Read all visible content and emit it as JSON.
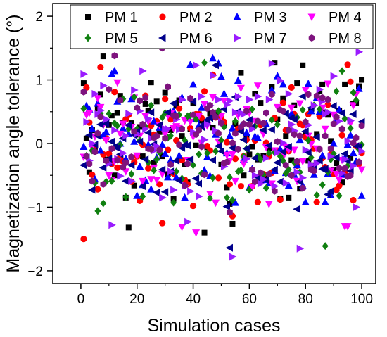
{
  "chart_data": {
    "type": "scatter",
    "xlabel": "Simulation cases",
    "ylabel": "Magnetization angle tolerance (°)",
    "xlim": [
      -10,
      105
    ],
    "ylim": [
      -2.2,
      2.2
    ],
    "xticks": [
      0,
      20,
      40,
      60,
      80,
      100
    ],
    "yticks": [
      -2,
      -1,
      0,
      1,
      2
    ],
    "legend_position": "top",
    "legend_columns": 4,
    "x": [
      1,
      2,
      3,
      4,
      5,
      6,
      7,
      8,
      9,
      10,
      11,
      12,
      13,
      14,
      15,
      16,
      17,
      18,
      19,
      20,
      21,
      22,
      23,
      24,
      25,
      26,
      27,
      28,
      29,
      30,
      31,
      32,
      33,
      34,
      35,
      36,
      37,
      38,
      39,
      40,
      41,
      42,
      43,
      44,
      45,
      46,
      47,
      48,
      49,
      50,
      51,
      52,
      53,
      54,
      55,
      56,
      57,
      58,
      59,
      60,
      61,
      62,
      63,
      64,
      65,
      66,
      67,
      68,
      69,
      70,
      71,
      72,
      73,
      74,
      75,
      76,
      77,
      78,
      79,
      80,
      81,
      82,
      83,
      84,
      85,
      86,
      87,
      88,
      89,
      90,
      91,
      92,
      93,
      94,
      95,
      96,
      97,
      98,
      99,
      100
    ],
    "series": [
      {
        "name": "PM 1",
        "color": "#000000",
        "marker": "square",
        "values": [
          0.95,
          0.08,
          -0.45,
          0.21,
          -0.12,
          0.55,
          0.77,
          1.37,
          -0.25,
          0.29,
          0.44,
          -0.5,
          0.48,
          0.75,
          0.33,
          -0.85,
          -1.32,
          0.32,
          -0.66,
          0.14,
          0.26,
          -0.2,
          0.62,
          0.52,
          0.96,
          -0.3,
          0.66,
          0.18,
          -0.2,
          0.8,
          -0.48,
          0.21,
          -0.87,
          0.59,
          0.68,
          0.12,
          -0.33,
          -0.61,
          0.23,
          0.63,
          -0.03,
          0.46,
          0.36,
          -1.4,
          -0.06,
          0.47,
          0.25,
          1.79,
          0.49,
          -0.33,
          0.3,
          -0.69,
          -0.95,
          -1.26,
          0.31,
          0.24,
          1.11,
          -0.5,
          0.09,
          -0.17,
          -0.05,
          0.78,
          -0.25,
          0.64,
          -0.19,
          -0.51,
          -0.08,
          0.89,
          1.27,
          0.38,
          -0.87,
          0.71,
          0.12,
          -0.85,
          -0.26,
          0.6,
          0.95,
          -0.71,
          1.23,
          0.16,
          -0.27,
          0.51,
          -0.34,
          0.15,
          0.82,
          0.93,
          0.49,
          0.45,
          0.04,
          -0.42,
          -0.31,
          0.52,
          -0.61,
          0.93,
          1.77,
          -0.23,
          0.63,
          0.63,
          0.9,
          1.0
        ]
      },
      {
        "name": "PM 2",
        "color": "#ff0000",
        "marker": "circle",
        "values": [
          -1.5,
          0.88,
          0.33,
          -0.49,
          -0.04,
          -0.72,
          1.2,
          -0.17,
          0.08,
          -0.16,
          -0.32,
          0.81,
          -0.38,
          -0.21,
          -0.28,
          0.38,
          0.45,
          -0.6,
          -0.29,
          -0.2,
          -0.9,
          -0.02,
          0.75,
          -0.39,
          0.28,
          0.14,
          0.35,
          -0.64,
          -1.25,
          0.7,
          -0.1,
          0.38,
          -0.47,
          0.05,
          0.55,
          -0.26,
          -0.57,
          -0.64,
          0.24,
          -0.98,
          0.46,
          0.46,
          0.4,
          0.82,
          -0.04,
          -0.11,
          1.08,
          0.41,
          -0.54,
          0.42,
          0.34,
          0.02,
          -0.64,
          -1.14,
          -0.24,
          0.23,
          -0.67,
          -0.2,
          0.06,
          0.52,
          -0.67,
          0.05,
          -0.92,
          0.29,
          -0.48,
          0.01,
          -0.2,
          -0.46,
          0.4,
          -0.11,
          -0.88,
          0.64,
          0.21,
          -0.12,
          0.88,
          0.46,
          -0.35,
          0.31,
          0.29,
          0.1,
          0.46,
          0.06,
          -0.08,
          -0.92,
          0.43,
          -0.23,
          -0.37,
          0.61,
          -0.17,
          -0.48,
          -0.73,
          -0.66,
          0.13,
          -0.45,
          1.24,
          0.97,
          -0.89,
          -0.04,
          -0.32,
          -0.15
        ]
      },
      {
        "name": "PM 3",
        "color": "#0000ff",
        "marker": "triangle-up",
        "values": [
          -0.05,
          0.59,
          0.54,
          0.23,
          -0.56,
          0.63,
          -0.11,
          0.13,
          0.18,
          -0.3,
          1.09,
          1.14,
          0.66,
          0.0,
          0.24,
          -0.24,
          0.15,
          0.7,
          0.03,
          -0.82,
          -0.36,
          -0.65,
          -0.58,
          -0.02,
          -0.72,
          0.35,
          -0.22,
          0.25,
          -0.02,
          -0.16,
          -0.53,
          -0.26,
          0.51,
          -0.53,
          -0.19,
          0.72,
          -0.85,
          0.4,
          1.24,
          0.93,
          0.39,
          0.28,
          0.56,
          -0.42,
          -0.21,
          -0.51,
          1.34,
          0.14,
          1.26,
          1.05,
          0.78,
          -0.15,
          0.12,
          0.24,
          -0.93,
          0.99,
          0.27,
          -0.25,
          0.17,
          -0.69,
          -0.4,
          0.11,
          0.09,
          -0.5,
          -0.57,
          0.31,
          -0.62,
          0.84,
          -0.43,
          1.06,
          -0.09,
          0.93,
          -0.46,
          -0.66,
          0.47,
          -0.49,
          -0.34,
          0.06,
          -0.66,
          -0.92,
          0.94,
          0.51,
          -0.49,
          0.72,
          0.5,
          -0.19,
          -0.92,
          -0.47,
          -0.81,
          0.0,
          0.38,
          0.53,
          -0.49,
          -0.23,
          -0.02,
          0.13,
          -0.15,
          -0.28,
          0.86,
          -0.82
        ]
      },
      {
        "name": "PM 4",
        "color": "#ff00ff",
        "marker": "triangle-down",
        "values": [
          -0.21,
          0.45,
          0.48,
          -0.06,
          0.11,
          0.71,
          0.57,
          0.29,
          0.05,
          -0.5,
          -0.57,
          -0.28,
          0.96,
          0.15,
          0.31,
          -0.44,
          0.26,
          0.26,
          0.72,
          -0.19,
          0.12,
          -0.59,
          0.43,
          0.35,
          -0.56,
          -0.38,
          -0.57,
          0.29,
          -0.48,
          0.15,
          0.44,
          0.47,
          0.24,
          0.27,
          0.25,
          -1.31,
          0.36,
          -0.26,
          0.34,
          0.11,
          -1.4,
          0.43,
          0.01,
          0.62,
          0.28,
          -0.79,
          0.73,
          -0.93,
          0.03,
          0.43,
          0.67,
          -0.18,
          -0.27,
          -0.17,
          -0.59,
          0.44,
          0.87,
          -0.32,
          0.54,
          0.48,
          -0.69,
          0.35,
          0.91,
          -0.61,
          0.15,
          -0.06,
          -0.95,
          -0.63,
          -0.11,
          0.57,
          -0.19,
          -0.21,
          -0.06,
          -0.1,
          0.56,
          -0.1,
          -0.59,
          0.63,
          -0.28,
          0.84,
          0.12,
          -0.01,
          -0.39,
          -0.08,
          0.69,
          0.56,
          0.23,
          0.94,
          -0.43,
          0.45,
          -0.48,
          -0.57,
          -0.26,
          -1.3,
          -1.3,
          0.32,
          0.6,
          0.77,
          -0.04,
          -0.41
        ]
      },
      {
        "name": "PM 5",
        "color": "#108010",
        "marker": "diamond",
        "values": [
          0.55,
          -0.19,
          1.68,
          -0.11,
          -0.62,
          -1.06,
          0.47,
          -0.94,
          -0.6,
          0.47,
          -0.59,
          0.32,
          0.28,
          -0.02,
          0.7,
          -0.84,
          0.23,
          -0.48,
          0.73,
          0.23,
          0.05,
          -0.83,
          0.27,
          -0.3,
          0.6,
          -0.42,
          -0.25,
          -0.14,
          0.41,
          0.48,
          0.09,
          0.12,
          -0.93,
          -0.44,
          0.45,
          -0.55,
          0.05,
          0.43,
          0.44,
          -0.34,
          0.38,
          -0.17,
          -0.47,
          1.27,
          -0.15,
          -0.86,
          -0.54,
          -0.12,
          0.51,
          0.05,
          0.26,
          -0.85,
          -0.53,
          -0.89,
          0.35,
          -0.44,
          -0.42,
          -0.2,
          -0.08,
          -0.73,
          0.54,
          0.27,
          -0.19,
          -0.25,
          -0.49,
          -0.7,
          -0.15,
          0.37,
          -0.14,
          0.3,
          -0.2,
          -0.27,
          -0.47,
          -0.41,
          -0.5,
          -0.3,
          0.41,
          -0.45,
          0.53,
          0.34,
          0.05,
          -0.22,
          0.6,
          -0.81,
          0.54,
          -0.65,
          -1.61,
          -0.45,
          -0.25,
          -0.16,
          0.82,
          -0.82,
          1.14,
          0.39,
          -0.35,
          0.24,
          0.8,
          0.68,
          -0.09,
          -0.02
        ]
      },
      {
        "name": "PM 6",
        "color": "#00008b",
        "marker": "triangle-left",
        "values": [
          -0.34,
          -0.22,
          0.13,
          -0.73,
          -0.02,
          0.12,
          0.3,
          -0.38,
          0.31,
          -0.24,
          0.03,
          -0.05,
          -0.07,
          -0.17,
          0.08,
          -0.59,
          0.29,
          -0.34,
          0.13,
          0.19,
          0.03,
          -0.67,
          -0.25,
          0.17,
          0.49,
          -0.01,
          -0.77,
          0.29,
          -0.41,
          -0.76,
          0.49,
          -0.44,
          0.63,
          -0.27,
          -0.58,
          -0.07,
          -0.02,
          -0.03,
          -0.25,
          0.66,
          -0.55,
          -0.63,
          0.26,
          0.31,
          0.37,
          0.4,
          -0.26,
          1.23,
          -0.04,
          -0.12,
          0.54,
          -0.99,
          -1.64,
          -0.07,
          0.73,
          0.5,
          0.19,
          0.06,
          -0.08,
          0.37,
          0.26,
          -0.23,
          -0.53,
          -0.57,
          0.21,
          -0.57,
          -0.03,
          0.22,
          -0.41,
          -0.3,
          -0.6,
          -0.13,
          0.47,
          -0.05,
          0.4,
          0.38,
          -1.03,
          -0.6,
          0.74,
          0.19,
          -0.14,
          0.56,
          -0.38,
          0.1,
          -0.27,
          -0.4,
          -0.4,
          -0.8,
          -0.75,
          0.59,
          -0.22,
          1.59,
          0.48,
          -0.16,
          -0.27,
          -0.43,
          0.46,
          -0.04,
          -0.06,
          0.34
        ]
      },
      {
        "name": "PM 7",
        "color": "#9a1bff",
        "marker": "triangle-right",
        "values": [
          1.09,
          0.34,
          -0.27,
          0.0,
          0.78,
          0.46,
          0.52,
          0.91,
          0.38,
          -0.31,
          -1.28,
          0.21,
          -0.24,
          -0.51,
          -0.15,
          0.12,
          0.47,
          -0.59,
          0.84,
          0.15,
          0.51,
          1.14,
          0.23,
          0.39,
          0.08,
          -0.11,
          -0.04,
          1.65,
          -0.85,
          0.23,
          0.23,
          -0.44,
          -0.73,
          0.38,
          0.22,
          0.69,
          -0.66,
          -1.23,
          -0.75,
          0.18,
          1.23,
          -0.83,
          0.74,
          0.06,
          0.3,
          0.6,
          1.07,
          0.2,
          0.69,
          0.34,
          -0.36,
          0.61,
          0.67,
          -1.78,
          0.49,
          0.74,
          0.48,
          0.46,
          -0.24,
          0.69,
          0.23,
          -0.5,
          0.74,
          -0.63,
          -0.56,
          -0.23,
          0.69,
          1.26,
          -0.67,
          -0.14,
          0.99,
          0.01,
          -0.62,
          0.78,
          0.3,
          0.2,
          -0.45,
          -1.65,
          -0.54,
          -0.1,
          0.29,
          -0.33,
          0.6,
          -0.31,
          0.85,
          0.66,
          0.46,
          0.49,
          -0.2,
          1.06,
          0.41,
          0.35,
          -0.47,
          -0.25,
          0.04,
          0.36,
          -0.35,
          -1.0,
          1.44,
          -0.12
        ]
      },
      {
        "name": "PM 8",
        "color": "#7e137e",
        "marker": "hexagon",
        "values": [
          0.81,
          -0.2,
          -0.32,
          -0.59,
          -0.13,
          0.16,
          0.42,
          -0.64,
          -0.27,
          0.85,
          -0.08,
          1.38,
          -0.26,
          0.68,
          -0.37,
          -0.3,
          1.91,
          -0.21,
          0.19,
          0.56,
          0.67,
          0.3,
          0.72,
          -0.08,
          -0.09,
          0.09,
          0.12,
          -0.1,
          1.5,
          0.08,
          0.89,
          -0.33,
          0.44,
          0.43,
          -0.02,
          0.23,
          -0.66,
          -0.32,
          0.71,
          0.45,
          0.14,
          0.21,
          -0.05,
          -0.49,
          0.55,
          0.6,
          0.49,
          0.42,
          0.16,
          0.32,
          -0.31,
          -0.29,
          -1.08,
          0.01,
          0.16,
          -0.09,
          0.26,
          0.31,
          0.51,
          0.3,
          -0.41,
          -0.6,
          0.35,
          -0.46,
          0.32,
          0.48,
          -0.48,
          0.77,
          -0.75,
          0.03,
          0.53,
          0.51,
          -0.34,
          0.21,
          -0.5,
          0.14,
          -0.28,
          0.12,
          -0.7,
          0.34,
          0.77,
          -0.41,
          -0.43,
          0.75,
          -0.09,
          0.72,
          0.12,
          0.69,
          -0.08,
          0.31,
          0.42,
          -0.39,
          0.23,
          -0.39,
          -0.52,
          -0.5,
          0.01,
          0.09,
          -0.29,
          0.28
        ]
      }
    ]
  }
}
